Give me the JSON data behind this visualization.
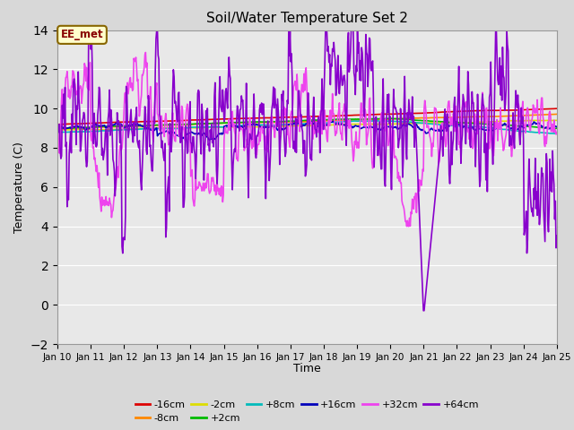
{
  "title": "Soil/Water Temperature Set 2",
  "xlabel": "Time",
  "ylabel": "Temperature (C)",
  "ylim": [
    -2,
    14
  ],
  "yticks": [
    -2,
    0,
    2,
    4,
    6,
    8,
    10,
    12,
    14
  ],
  "x_start": 10,
  "x_end": 25,
  "x_ticks": [
    10,
    11,
    12,
    13,
    14,
    15,
    16,
    17,
    18,
    19,
    20,
    21,
    22,
    23,
    24,
    25
  ],
  "x_tick_labels": [
    "Jan 10",
    "Jan 11",
    "Jan 12",
    "Jan 13",
    "Jan 14",
    "Jan 15",
    "Jan 16",
    "Jan 17",
    "Jan 18",
    "Jan 19",
    "Jan 20",
    "Jan 21",
    "Jan 22",
    "Jan 23",
    "Jan 24",
    "Jan 25"
  ],
  "bg_color": "#d8d8d8",
  "plot_bg_color": "#e8e8e8",
  "grid_color": "#ffffff",
  "annotation_text": "EE_met",
  "annotation_bg": "#ffffcc",
  "annotation_border": "#886600",
  "annotation_text_color": "#880000",
  "series": [
    {
      "label": "-16cm",
      "color": "#dd0000",
      "lw": 1.2
    },
    {
      "label": "-8cm",
      "color": "#ff8800",
      "lw": 1.2
    },
    {
      "label": "-2cm",
      "color": "#dddd00",
      "lw": 1.2
    },
    {
      "label": "+2cm",
      "color": "#00bb00",
      "lw": 1.2
    },
    {
      "label": "+8cm",
      "color": "#00bbbb",
      "lw": 1.2
    },
    {
      "label": "+16cm",
      "color": "#0000bb",
      "lw": 1.2
    },
    {
      "label": "+32cm",
      "color": "#ee44ee",
      "lw": 1.2
    },
    {
      "label": "+64cm",
      "color": "#8800cc",
      "lw": 1.2
    }
  ]
}
